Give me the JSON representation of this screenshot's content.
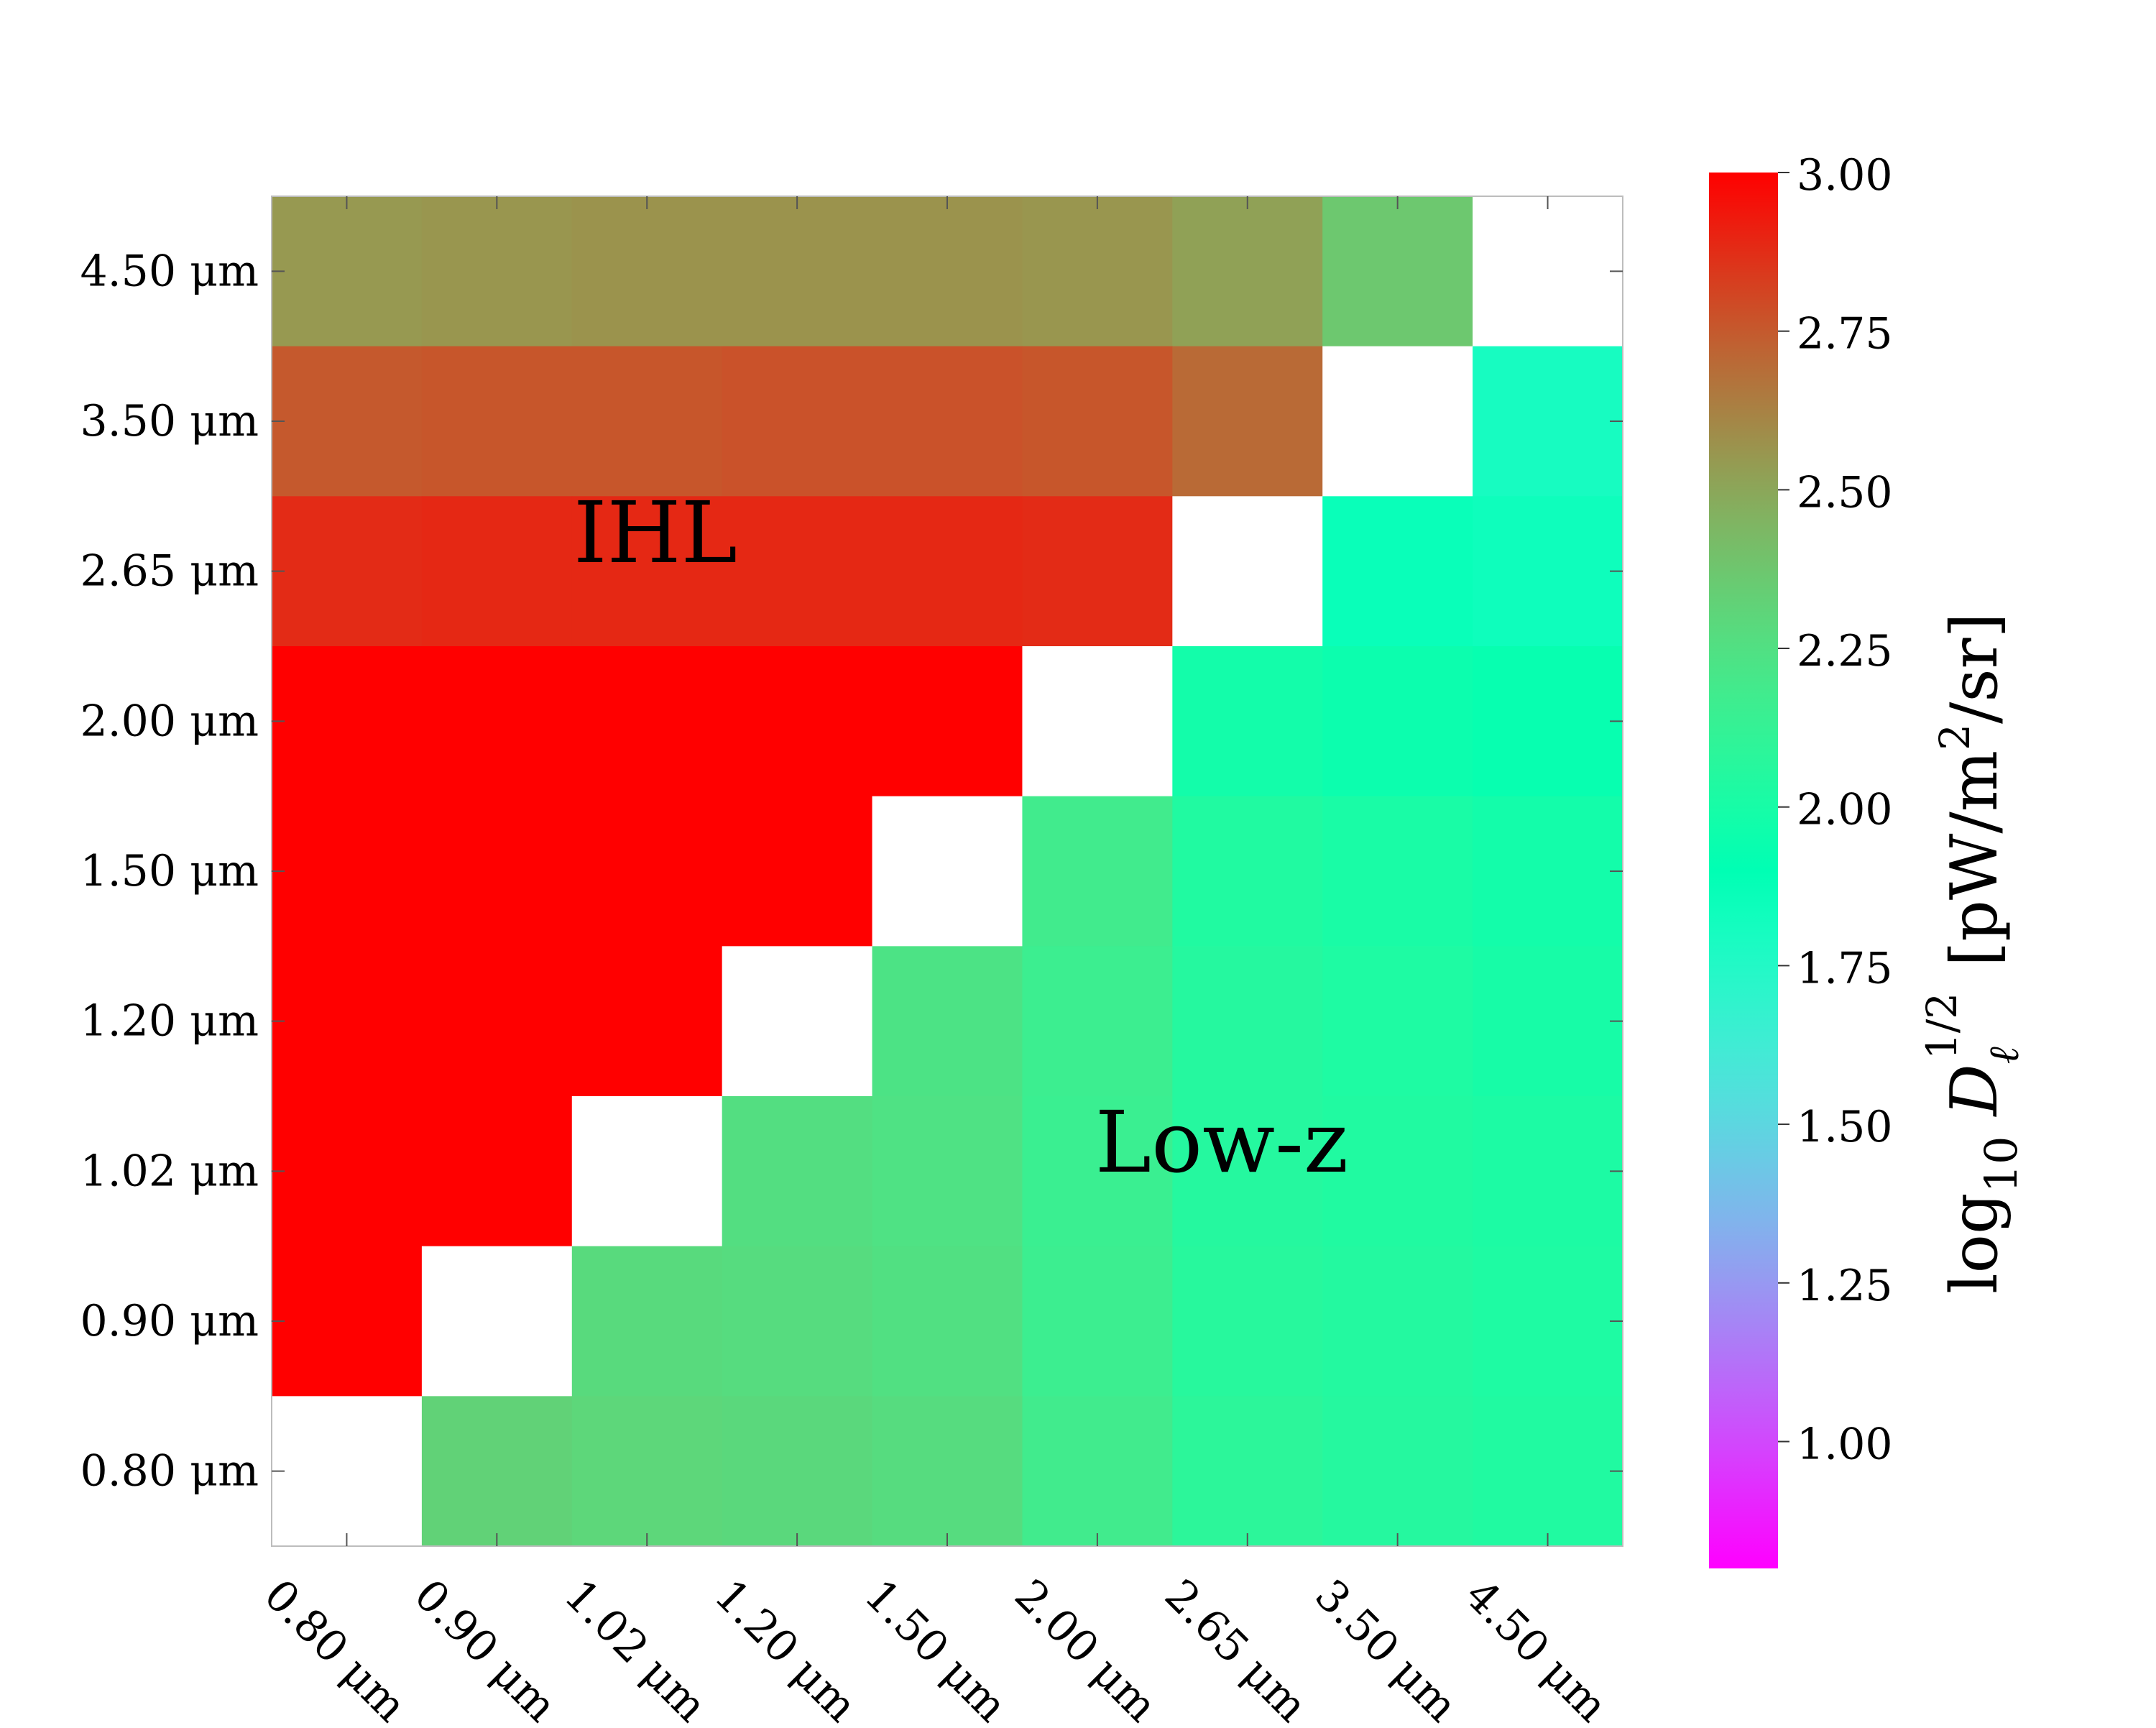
{
  "chart_data": {
    "type": "heatmap",
    "x_ticks": [
      "0.80 μm",
      "0.90 μm",
      "1.02 μm",
      "1.20 μm",
      "1.50 μm",
      "2.00 μm",
      "2.65 μm",
      "3.50 μm",
      "4.50 μm"
    ],
    "y_ticks": [
      "0.80 μm",
      "0.90 μm",
      "1.02 μm",
      "1.20 μm",
      "1.50 μm",
      "2.00 μm",
      "2.65 μm",
      "3.50 μm",
      "4.50 μm"
    ],
    "values_top_to_bottom": [
      [
        2.55,
        2.56,
        2.57,
        2.57,
        2.57,
        2.56,
        2.52,
        2.37,
        null
      ],
      [
        2.75,
        2.76,
        2.76,
        2.77,
        2.77,
        2.76,
        2.7,
        null,
        1.8
      ],
      [
        2.88,
        2.89,
        2.89,
        2.89,
        2.89,
        2.88,
        null,
        1.86,
        1.84
      ],
      [
        3.05,
        3.05,
        3.05,
        3.05,
        3.05,
        null,
        1.98,
        1.95,
        1.93
      ],
      [
        3.05,
        3.05,
        3.05,
        3.05,
        null,
        2.18,
        2.04,
        2.01,
        1.98
      ],
      [
        3.05,
        3.05,
        3.05,
        null,
        2.23,
        2.16,
        2.06,
        2.03,
        2.0
      ],
      [
        3.05,
        3.05,
        null,
        2.26,
        2.24,
        2.15,
        2.06,
        2.04,
        2.02
      ],
      [
        3.05,
        null,
        2.28,
        2.27,
        2.25,
        2.16,
        2.07,
        2.05,
        2.03
      ],
      [
        null,
        2.32,
        2.3,
        2.29,
        2.27,
        2.18,
        2.09,
        2.06,
        2.04
      ]
    ],
    "colorbar": {
      "ticks": [
        "1.00",
        "1.25",
        "1.50",
        "1.75",
        "2.00",
        "2.25",
        "2.50",
        "2.75",
        "3.00"
      ],
      "range": [
        0.8,
        3.0
      ],
      "label": "log10 D_ℓ^{1/2} [pW/m²/sr]",
      "colormap": "rainbow"
    },
    "annotations": [
      "IHL",
      "Low-z"
    ]
  }
}
